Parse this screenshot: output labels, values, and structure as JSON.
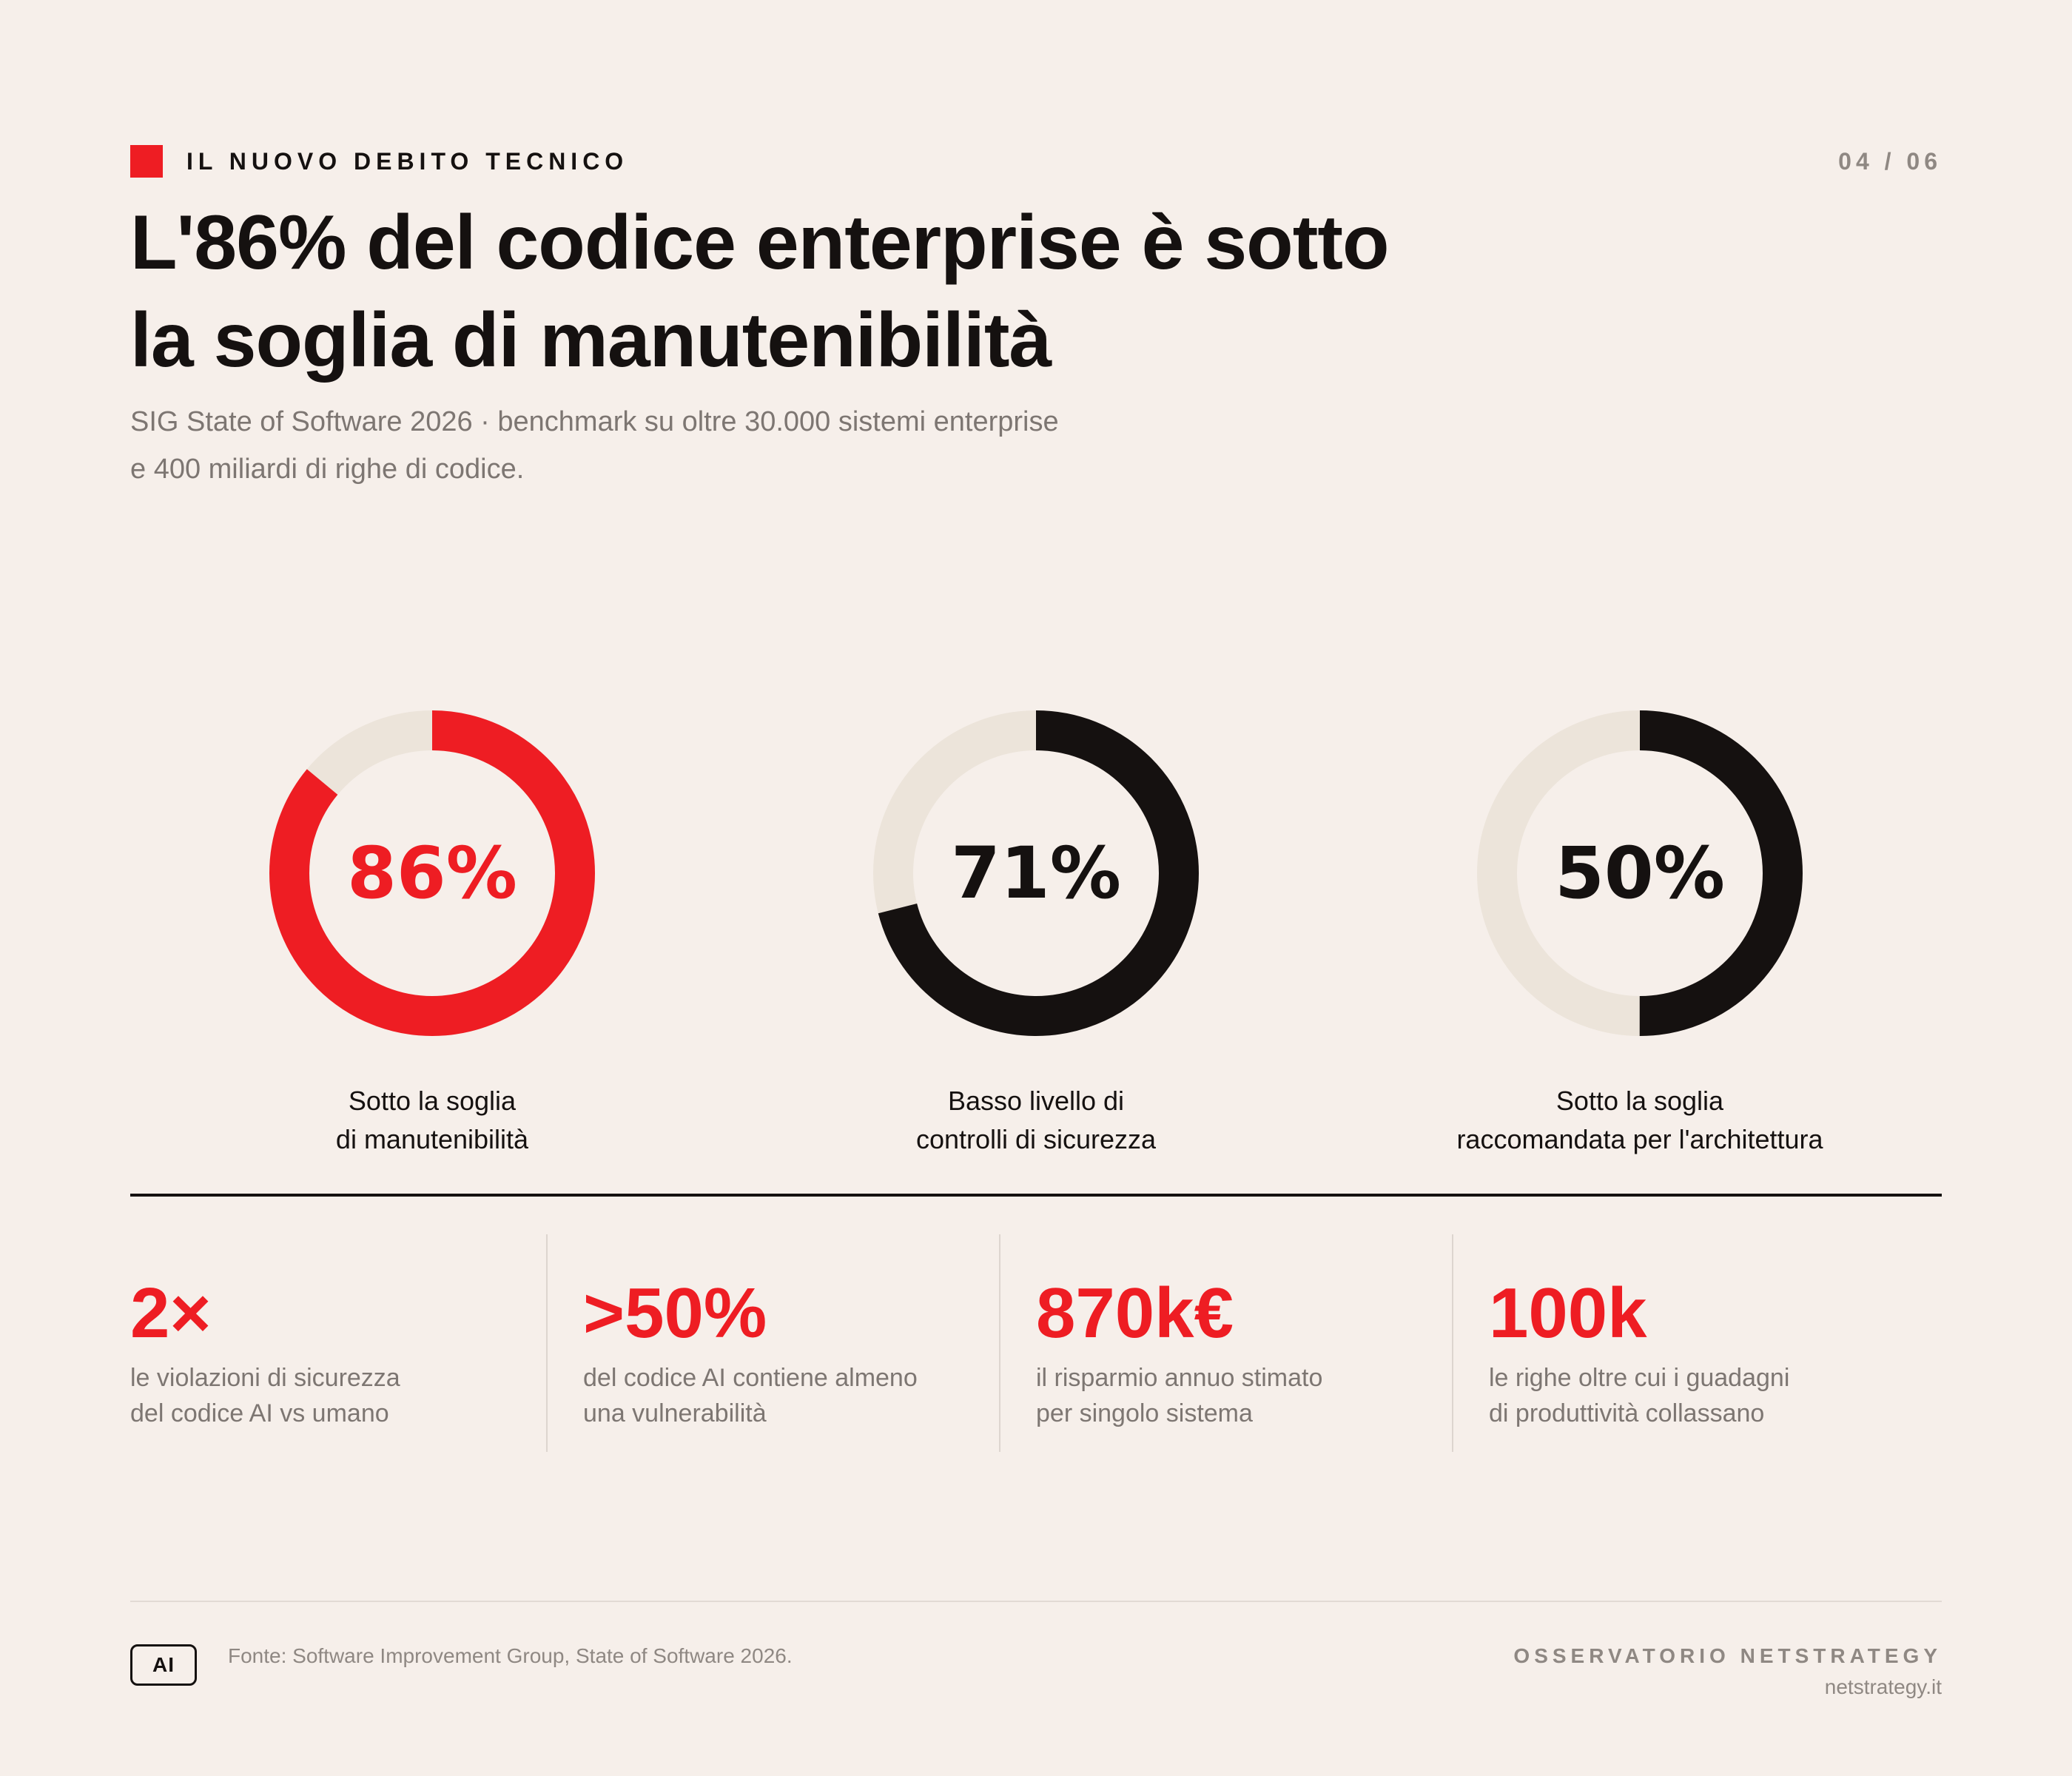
{
  "header": {
    "kicker": "IL NUOVO DEBITO TECNICO",
    "page_number": "04 / 06",
    "title_lines": [
      "L'86% del codice enterprise è sotto",
      "la soglia di manutenibilità"
    ],
    "subtitle_lines": [
      "SIG State of Software 2026 · benchmark su oltre 30.000 sistemi enterprise",
      "e 400 miliardi di righe di codice."
    ]
  },
  "colors": {
    "accent": "#ee1d23",
    "ink": "#151110",
    "track": "#ece4da",
    "background": "#f6efea",
    "muted": "#7d7672"
  },
  "chart_data": [
    {
      "type": "pie",
      "value": 86,
      "max": 100,
      "value_label": "86%",
      "color": "#ee1d23",
      "label_lines": [
        "Sotto la soglia",
        "di manutenibilità"
      ]
    },
    {
      "type": "pie",
      "value": 71,
      "max": 100,
      "value_label": "71%",
      "color": "#151110",
      "label_lines": [
        "Basso livello di",
        "controlli di sicurezza"
      ]
    },
    {
      "type": "pie",
      "value": 50,
      "max": 100,
      "value_label": "50%",
      "color": "#151110",
      "label_lines": [
        "Sotto la soglia",
        "raccomandata per l'architettura"
      ]
    }
  ],
  "kpis": [
    {
      "value": "2×",
      "desc_lines": [
        "le violazioni di sicurezza",
        "del codice AI vs umano"
      ]
    },
    {
      "value": ">50%",
      "desc_lines": [
        "del codice AI contiene almeno",
        "una vulnerabilità"
      ]
    },
    {
      "value": "870k€",
      "desc_lines": [
        "il risparmio annuo stimato",
        "per singolo sistema"
      ]
    },
    {
      "value": "100k",
      "desc_lines": [
        "le righe oltre cui i guadagni",
        "di produttività collassano"
      ]
    }
  ],
  "footer": {
    "badge": "AI",
    "source": "Fonte: Software Improvement Group, State of Software 2026.",
    "brand": "OSSERVATORIO NETSTRATEGY",
    "site": "netstrategy.it"
  }
}
